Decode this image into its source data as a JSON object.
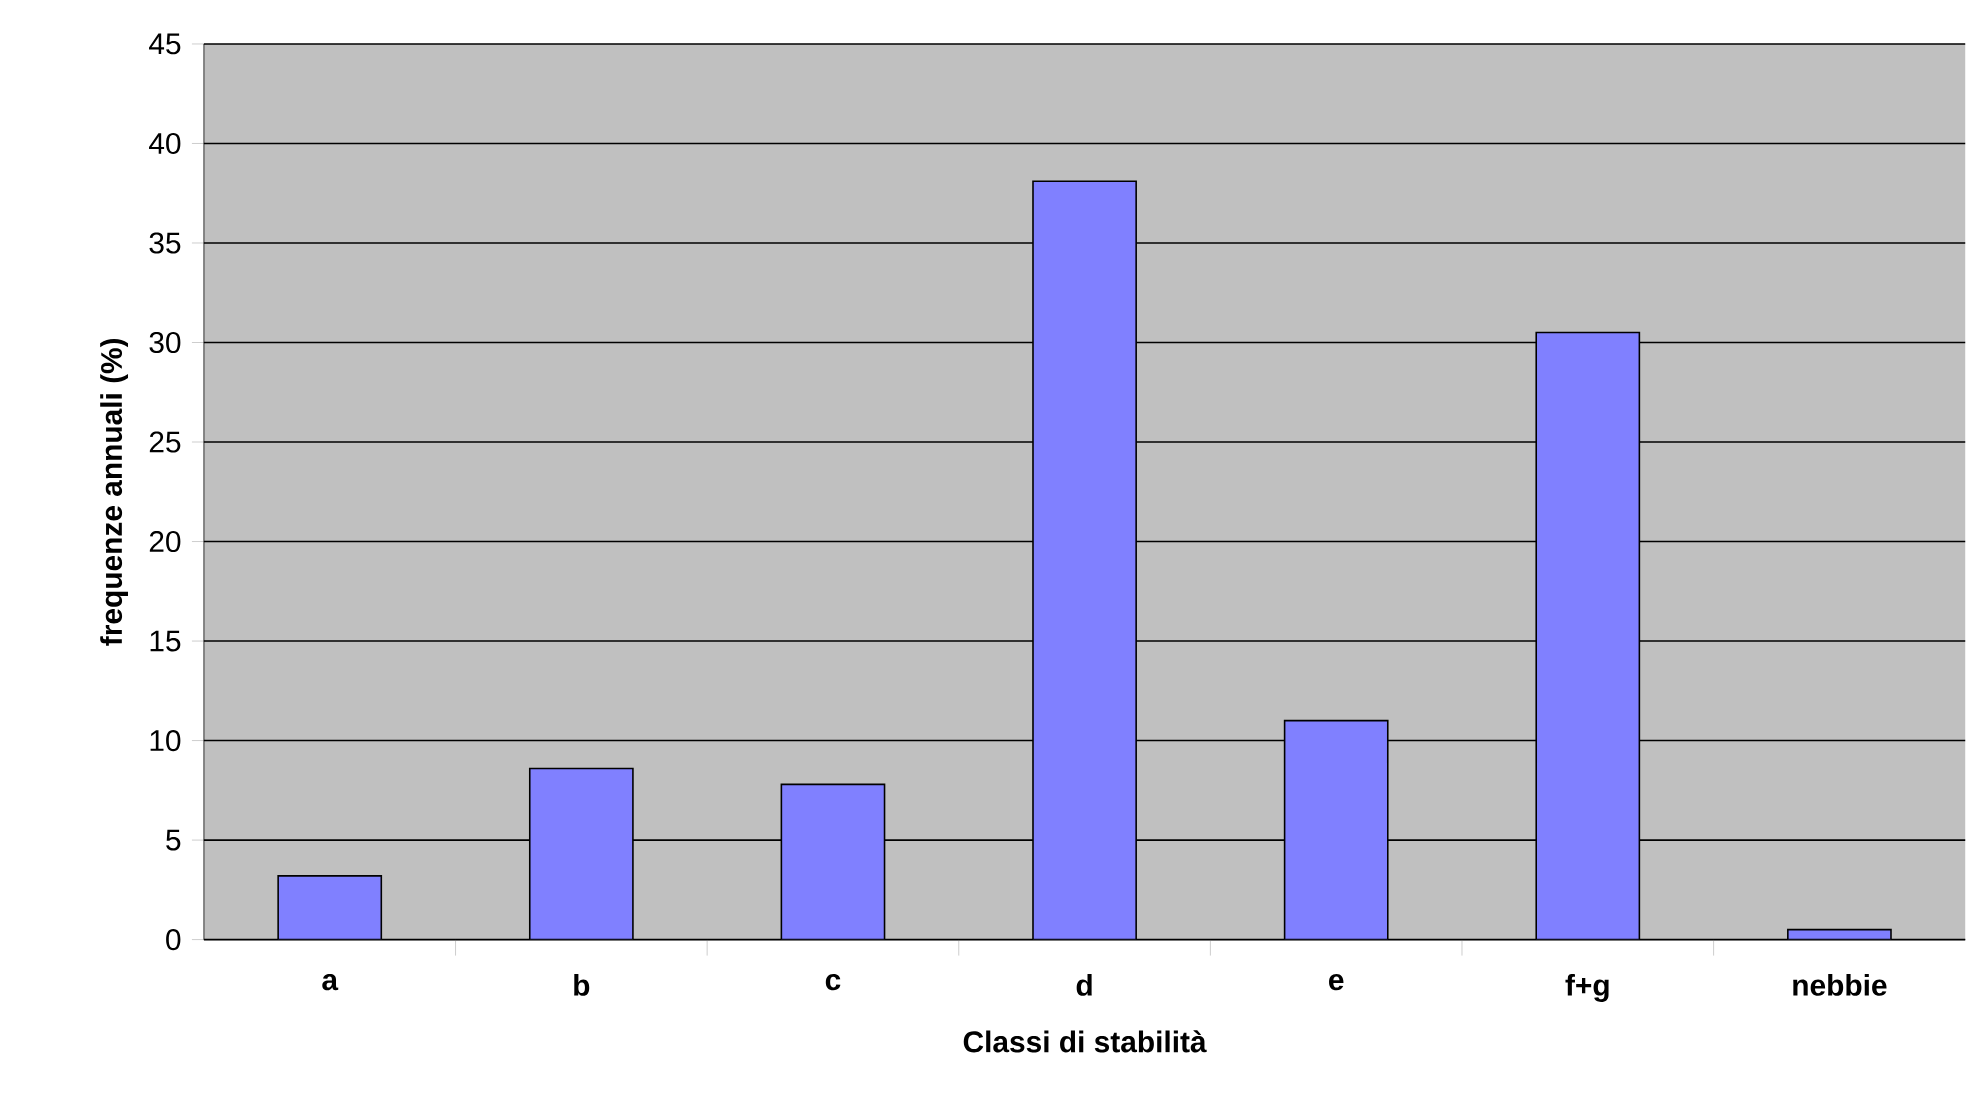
{
  "chart_data": {
    "type": "bar",
    "xlabel": "Classi di stabilità",
    "ylabel": "frequenze annuali (%)",
    "categories": [
      "a",
      "b",
      "c",
      "d",
      "e",
      "f+g",
      "nebbie"
    ],
    "values": [
      3.2,
      8.6,
      7.8,
      38.1,
      11.0,
      30.5,
      0.5
    ],
    "color": "#8080ff",
    "ylim": [
      0,
      45
    ],
    "yticks": [
      0,
      5,
      10,
      15,
      20,
      25,
      30,
      35,
      40,
      45
    ],
    "grid": "y"
  }
}
